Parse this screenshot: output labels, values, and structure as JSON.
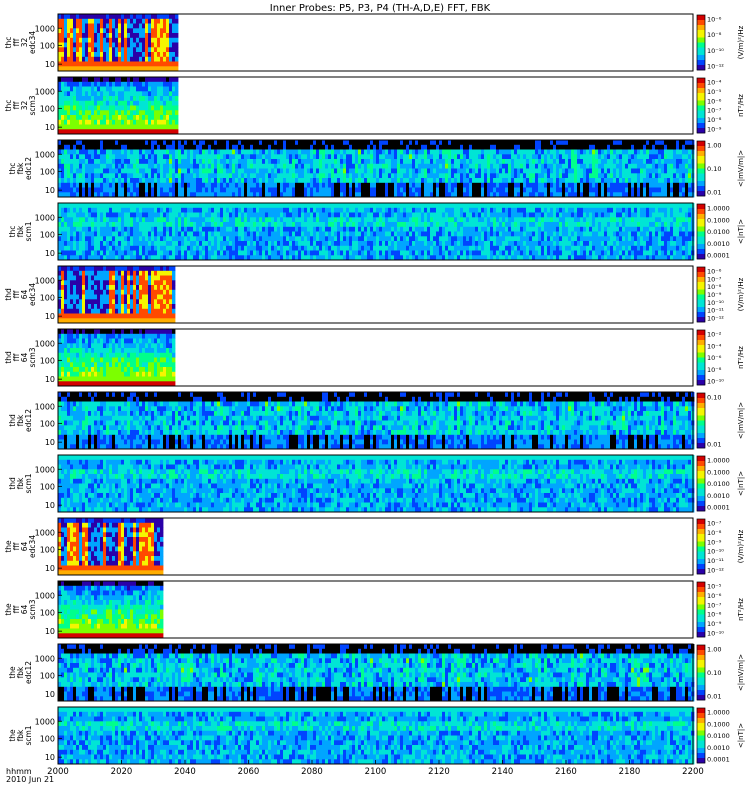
{
  "title": "Inner Probes: P5, P3, P4 (TH-A,D,E) FFT, FBK",
  "colors": {
    "spectrum": [
      "#000000",
      "#2a00a8",
      "#0044ff",
      "#00a5ff",
      "#00e5d5",
      "#00ff8c",
      "#7cff00",
      "#f5f500",
      "#ffae00",
      "#ff4a00",
      "#d40000"
    ],
    "bars": [
      "#d40000",
      "#ffae00",
      "#f5f500",
      "#00e5d5",
      "#7cff00"
    ],
    "background": "#ffffff"
  },
  "chart_data": {
    "type": "heatmap",
    "title": "Inner Probes: P5, P3, P4 (TH-A,D,E) FFT, FBK",
    "x_ticks": [
      "2000",
      "2020",
      "2040",
      "2060",
      "2080",
      "2100",
      "2120",
      "2140",
      "2160",
      "2180",
      "2200"
    ],
    "x_range": [
      2000,
      2200
    ],
    "x_footer": [
      "hhmm",
      "2010 Jun 21"
    ],
    "panels": [
      {
        "label": [
          "thc",
          "fff",
          "32",
          "edc34"
        ],
        "yticks": [
          "1000",
          "100",
          "10"
        ],
        "units": "(V/m)²/Hz",
        "cticks": [
          "10⁻⁶",
          "10⁻⁸",
          "10⁻¹⁰",
          "10⁻¹²"
        ],
        "data_end": 2037,
        "style": "burst_e",
        "seed": 11
      },
      {
        "label": [
          "thc",
          "fff",
          "32",
          "scm3"
        ],
        "yticks": [
          "1000",
          "100",
          "10"
        ],
        "units": "nT²/Hz",
        "cticks": [
          "10⁻⁴",
          "10⁻⁵",
          "10⁻⁶",
          "10⁻⁷",
          "10⁻⁸",
          "10⁻⁹"
        ],
        "data_end": 2037,
        "style": "burst_b",
        "seed": 12
      },
      {
        "label": [
          "thc",
          "fbk",
          "edc12"
        ],
        "yticks": [
          "1000",
          "100",
          "10"
        ],
        "units": "<|mV/m|>",
        "cticks": [
          "1.00",
          "0.10",
          "0.01"
        ],
        "data_end": 2200,
        "style": "fbk_e",
        "seed": 13
      },
      {
        "label": [
          "thc",
          "fbk",
          "scm1"
        ],
        "yticks": [
          "1000",
          "100",
          "10"
        ],
        "units": "<|nT|>",
        "cticks": [
          "1.0000",
          "0.1000",
          "0.0100",
          "0.0010",
          "0.0001"
        ],
        "data_end": 2200,
        "style": "fbk_b",
        "seed": 14
      },
      {
        "label": [
          "thd",
          "fff",
          "64",
          "edc34"
        ],
        "yticks": [
          "1000",
          "100",
          "10"
        ],
        "units": "(V/m)²/Hz",
        "cticks": [
          "10⁻⁶",
          "10⁻⁷",
          "10⁻⁸",
          "10⁻⁹",
          "10⁻¹⁰",
          "10⁻¹¹",
          "10⁻¹²"
        ],
        "data_end": 2036,
        "style": "burst_e",
        "seed": 21
      },
      {
        "label": [
          "thd",
          "fff",
          "64",
          "scm3"
        ],
        "yticks": [
          "1000",
          "100",
          "10"
        ],
        "units": "nT²/Hz",
        "cticks": [
          "10⁻²",
          "10⁻⁴",
          "10⁻⁶",
          "10⁻⁸",
          "10⁻¹⁰"
        ],
        "data_end": 2036,
        "style": "burst_b",
        "seed": 22
      },
      {
        "label": [
          "thd",
          "fbk",
          "edc12"
        ],
        "yticks": [
          "1000",
          "100",
          "10"
        ],
        "units": "<|mV/m|>",
        "cticks": [
          "0.10",
          "0.01"
        ],
        "data_end": 2200,
        "style": "fbk_e",
        "seed": 23
      },
      {
        "label": [
          "thd",
          "fbk",
          "scm1"
        ],
        "yticks": [
          "1000",
          "100",
          "10"
        ],
        "units": "<|nT|>",
        "cticks": [
          "1.0000",
          "0.1000",
          "0.0100",
          "0.0010",
          "0.0001"
        ],
        "data_end": 2200,
        "style": "fbk_b",
        "seed": 24
      },
      {
        "label": [
          "the",
          "fff",
          "64",
          "edc34"
        ],
        "yticks": [
          "1000",
          "100",
          "10"
        ],
        "units": "(V/m)²/Hz",
        "cticks": [
          "10⁻⁷",
          "10⁻⁸",
          "10⁻⁹",
          "10⁻¹⁰",
          "10⁻¹¹",
          "10⁻¹²"
        ],
        "data_end": 2033,
        "style": "burst_e",
        "seed": 31
      },
      {
        "label": [
          "the",
          "fff",
          "64",
          "scm3"
        ],
        "yticks": [
          "1000",
          "100",
          "10"
        ],
        "units": "nT²/Hz",
        "cticks": [
          "10⁻⁵",
          "10⁻⁶",
          "10⁻⁷",
          "10⁻⁸",
          "10⁻⁹",
          "10⁻¹⁰"
        ],
        "data_end": 2033,
        "style": "burst_b",
        "seed": 32
      },
      {
        "label": [
          "the",
          "fbk",
          "edc12"
        ],
        "yticks": [
          "1000",
          "100",
          "10"
        ],
        "units": "<|mV/m|>",
        "cticks": [
          "1.00",
          "0.10",
          "0.01"
        ],
        "data_end": 2200,
        "style": "fbk_e",
        "seed": 33
      },
      {
        "label": [
          "the",
          "fbk",
          "scm1"
        ],
        "yticks": [
          "1000",
          "100",
          "10"
        ],
        "units": "<|nT|>",
        "cticks": [
          "1.0000",
          "0.1000",
          "0.0100",
          "0.0010",
          "0.0001"
        ],
        "data_end": 2200,
        "style": "fbk_b",
        "seed": 34
      }
    ]
  }
}
